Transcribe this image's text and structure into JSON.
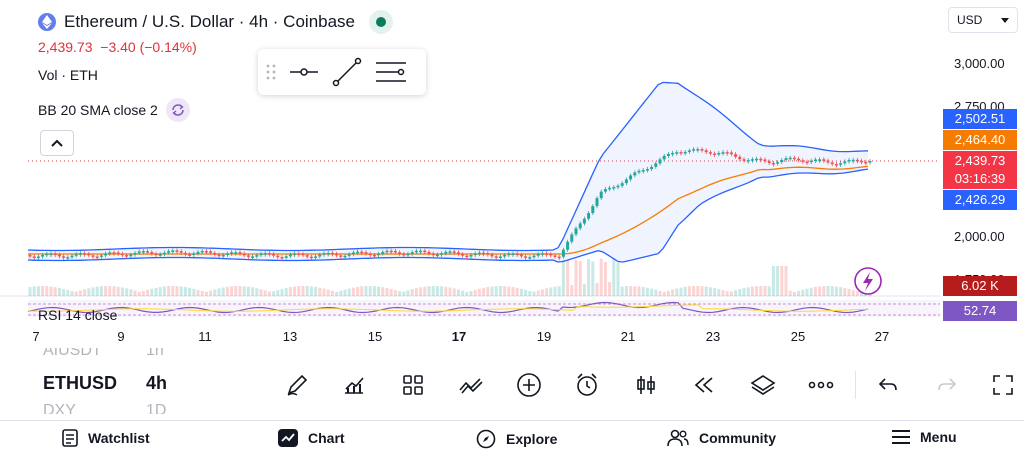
{
  "header": {
    "title": "Ethereum / U.S. Dollar · 4h · Coinbase",
    "price_text": "2,439.73",
    "change_text": "−3.40 (−0.14%)",
    "volume_label": "Vol · ETH",
    "indicator_label": "BB 20 SMA close 2",
    "rsi_label": "RSI 14 close"
  },
  "currency": {
    "selected": "USD"
  },
  "price_axis": {
    "ticks": [
      "3,000.00",
      "2,750.00",
      "2,000.00",
      "1,750.00"
    ]
  },
  "price_tags": [
    {
      "value": "2,502.51",
      "color": "#2962ff"
    },
    {
      "value": "2,464.40",
      "color": "#f57c00"
    },
    {
      "value": "2,439.73",
      "sub": "03:16:39",
      "color": "#f23645"
    },
    {
      "value": "2,426.29",
      "color": "#2962ff"
    },
    {
      "value": "6.02 K",
      "color": "#b71c1c"
    },
    {
      "value": "52.74",
      "color": "#7e57c2"
    }
  ],
  "time_axis": {
    "labels": [
      "7",
      "9",
      "11",
      "13",
      "15",
      "17",
      "19",
      "21",
      "23",
      "25",
      "27"
    ]
  },
  "symbols": [
    "AIUSDT",
    "ETHUSD",
    "DXY"
  ],
  "intervals": [
    "1h",
    "4h",
    "1D"
  ],
  "toolbar_icons": [
    "pencil-icon",
    "indicators-icon",
    "templates-icon",
    "compare-icon",
    "add-icon",
    "alert-icon",
    "chart-type-icon",
    "replay-icon",
    "layers-icon",
    "more-icon",
    "undo-icon",
    "redo-icon",
    "fullscreen-icon"
  ],
  "nav": {
    "watchlist": "Watchlist",
    "chart": "Chart",
    "explore": "Explore",
    "community": "Community",
    "menu": "Menu"
  },
  "colors": {
    "up": "#26a69a",
    "down": "#ef5350",
    "bb": "#2962ff",
    "basis": "#f57c00",
    "rsi": "#7e57c2",
    "accent": "#0a7c5c"
  }
}
